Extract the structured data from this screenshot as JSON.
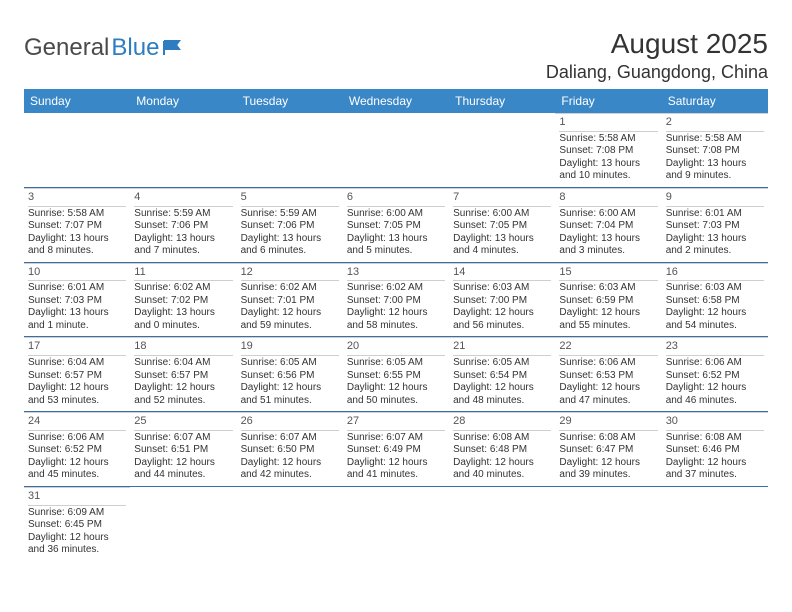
{
  "logo": {
    "textDark": "General",
    "textBlue": "Blue",
    "flagColor": "#2d7dc0"
  },
  "title": "August 2025",
  "location": "Daliang, Guangdong, China",
  "colors": {
    "headerBg": "#3a87c7",
    "headerText": "#ffffff",
    "rowDivider": "#3a6fa5",
    "cellDivider": "#d0d0d0",
    "text": "#333333"
  },
  "dayNames": [
    "Sunday",
    "Monday",
    "Tuesday",
    "Wednesday",
    "Thursday",
    "Friday",
    "Saturday"
  ],
  "weeks": [
    [
      null,
      null,
      null,
      null,
      null,
      {
        "day": "1",
        "sunrise": "Sunrise: 5:58 AM",
        "sunset": "Sunset: 7:08 PM",
        "daylight": "Daylight: 13 hours and 10 minutes."
      },
      {
        "day": "2",
        "sunrise": "Sunrise: 5:58 AM",
        "sunset": "Sunset: 7:08 PM",
        "daylight": "Daylight: 13 hours and 9 minutes."
      }
    ],
    [
      {
        "day": "3",
        "sunrise": "Sunrise: 5:58 AM",
        "sunset": "Sunset: 7:07 PM",
        "daylight": "Daylight: 13 hours and 8 minutes."
      },
      {
        "day": "4",
        "sunrise": "Sunrise: 5:59 AM",
        "sunset": "Sunset: 7:06 PM",
        "daylight": "Daylight: 13 hours and 7 minutes."
      },
      {
        "day": "5",
        "sunrise": "Sunrise: 5:59 AM",
        "sunset": "Sunset: 7:06 PM",
        "daylight": "Daylight: 13 hours and 6 minutes."
      },
      {
        "day": "6",
        "sunrise": "Sunrise: 6:00 AM",
        "sunset": "Sunset: 7:05 PM",
        "daylight": "Daylight: 13 hours and 5 minutes."
      },
      {
        "day": "7",
        "sunrise": "Sunrise: 6:00 AM",
        "sunset": "Sunset: 7:05 PM",
        "daylight": "Daylight: 13 hours and 4 minutes."
      },
      {
        "day": "8",
        "sunrise": "Sunrise: 6:00 AM",
        "sunset": "Sunset: 7:04 PM",
        "daylight": "Daylight: 13 hours and 3 minutes."
      },
      {
        "day": "9",
        "sunrise": "Sunrise: 6:01 AM",
        "sunset": "Sunset: 7:03 PM",
        "daylight": "Daylight: 13 hours and 2 minutes."
      }
    ],
    [
      {
        "day": "10",
        "sunrise": "Sunrise: 6:01 AM",
        "sunset": "Sunset: 7:03 PM",
        "daylight": "Daylight: 13 hours and 1 minute."
      },
      {
        "day": "11",
        "sunrise": "Sunrise: 6:02 AM",
        "sunset": "Sunset: 7:02 PM",
        "daylight": "Daylight: 13 hours and 0 minutes."
      },
      {
        "day": "12",
        "sunrise": "Sunrise: 6:02 AM",
        "sunset": "Sunset: 7:01 PM",
        "daylight": "Daylight: 12 hours and 59 minutes."
      },
      {
        "day": "13",
        "sunrise": "Sunrise: 6:02 AM",
        "sunset": "Sunset: 7:00 PM",
        "daylight": "Daylight: 12 hours and 58 minutes."
      },
      {
        "day": "14",
        "sunrise": "Sunrise: 6:03 AM",
        "sunset": "Sunset: 7:00 PM",
        "daylight": "Daylight: 12 hours and 56 minutes."
      },
      {
        "day": "15",
        "sunrise": "Sunrise: 6:03 AM",
        "sunset": "Sunset: 6:59 PM",
        "daylight": "Daylight: 12 hours and 55 minutes."
      },
      {
        "day": "16",
        "sunrise": "Sunrise: 6:03 AM",
        "sunset": "Sunset: 6:58 PM",
        "daylight": "Daylight: 12 hours and 54 minutes."
      }
    ],
    [
      {
        "day": "17",
        "sunrise": "Sunrise: 6:04 AM",
        "sunset": "Sunset: 6:57 PM",
        "daylight": "Daylight: 12 hours and 53 minutes."
      },
      {
        "day": "18",
        "sunrise": "Sunrise: 6:04 AM",
        "sunset": "Sunset: 6:57 PM",
        "daylight": "Daylight: 12 hours and 52 minutes."
      },
      {
        "day": "19",
        "sunrise": "Sunrise: 6:05 AM",
        "sunset": "Sunset: 6:56 PM",
        "daylight": "Daylight: 12 hours and 51 minutes."
      },
      {
        "day": "20",
        "sunrise": "Sunrise: 6:05 AM",
        "sunset": "Sunset: 6:55 PM",
        "daylight": "Daylight: 12 hours and 50 minutes."
      },
      {
        "day": "21",
        "sunrise": "Sunrise: 6:05 AM",
        "sunset": "Sunset: 6:54 PM",
        "daylight": "Daylight: 12 hours and 48 minutes."
      },
      {
        "day": "22",
        "sunrise": "Sunrise: 6:06 AM",
        "sunset": "Sunset: 6:53 PM",
        "daylight": "Daylight: 12 hours and 47 minutes."
      },
      {
        "day": "23",
        "sunrise": "Sunrise: 6:06 AM",
        "sunset": "Sunset: 6:52 PM",
        "daylight": "Daylight: 12 hours and 46 minutes."
      }
    ],
    [
      {
        "day": "24",
        "sunrise": "Sunrise: 6:06 AM",
        "sunset": "Sunset: 6:52 PM",
        "daylight": "Daylight: 12 hours and 45 minutes."
      },
      {
        "day": "25",
        "sunrise": "Sunrise: 6:07 AM",
        "sunset": "Sunset: 6:51 PM",
        "daylight": "Daylight: 12 hours and 44 minutes."
      },
      {
        "day": "26",
        "sunrise": "Sunrise: 6:07 AM",
        "sunset": "Sunset: 6:50 PM",
        "daylight": "Daylight: 12 hours and 42 minutes."
      },
      {
        "day": "27",
        "sunrise": "Sunrise: 6:07 AM",
        "sunset": "Sunset: 6:49 PM",
        "daylight": "Daylight: 12 hours and 41 minutes."
      },
      {
        "day": "28",
        "sunrise": "Sunrise: 6:08 AM",
        "sunset": "Sunset: 6:48 PM",
        "daylight": "Daylight: 12 hours and 40 minutes."
      },
      {
        "day": "29",
        "sunrise": "Sunrise: 6:08 AM",
        "sunset": "Sunset: 6:47 PM",
        "daylight": "Daylight: 12 hours and 39 minutes."
      },
      {
        "day": "30",
        "sunrise": "Sunrise: 6:08 AM",
        "sunset": "Sunset: 6:46 PM",
        "daylight": "Daylight: 12 hours and 37 minutes."
      }
    ],
    [
      {
        "day": "31",
        "sunrise": "Sunrise: 6:09 AM",
        "sunset": "Sunset: 6:45 PM",
        "daylight": "Daylight: 12 hours and 36 minutes."
      },
      null,
      null,
      null,
      null,
      null,
      null
    ]
  ]
}
